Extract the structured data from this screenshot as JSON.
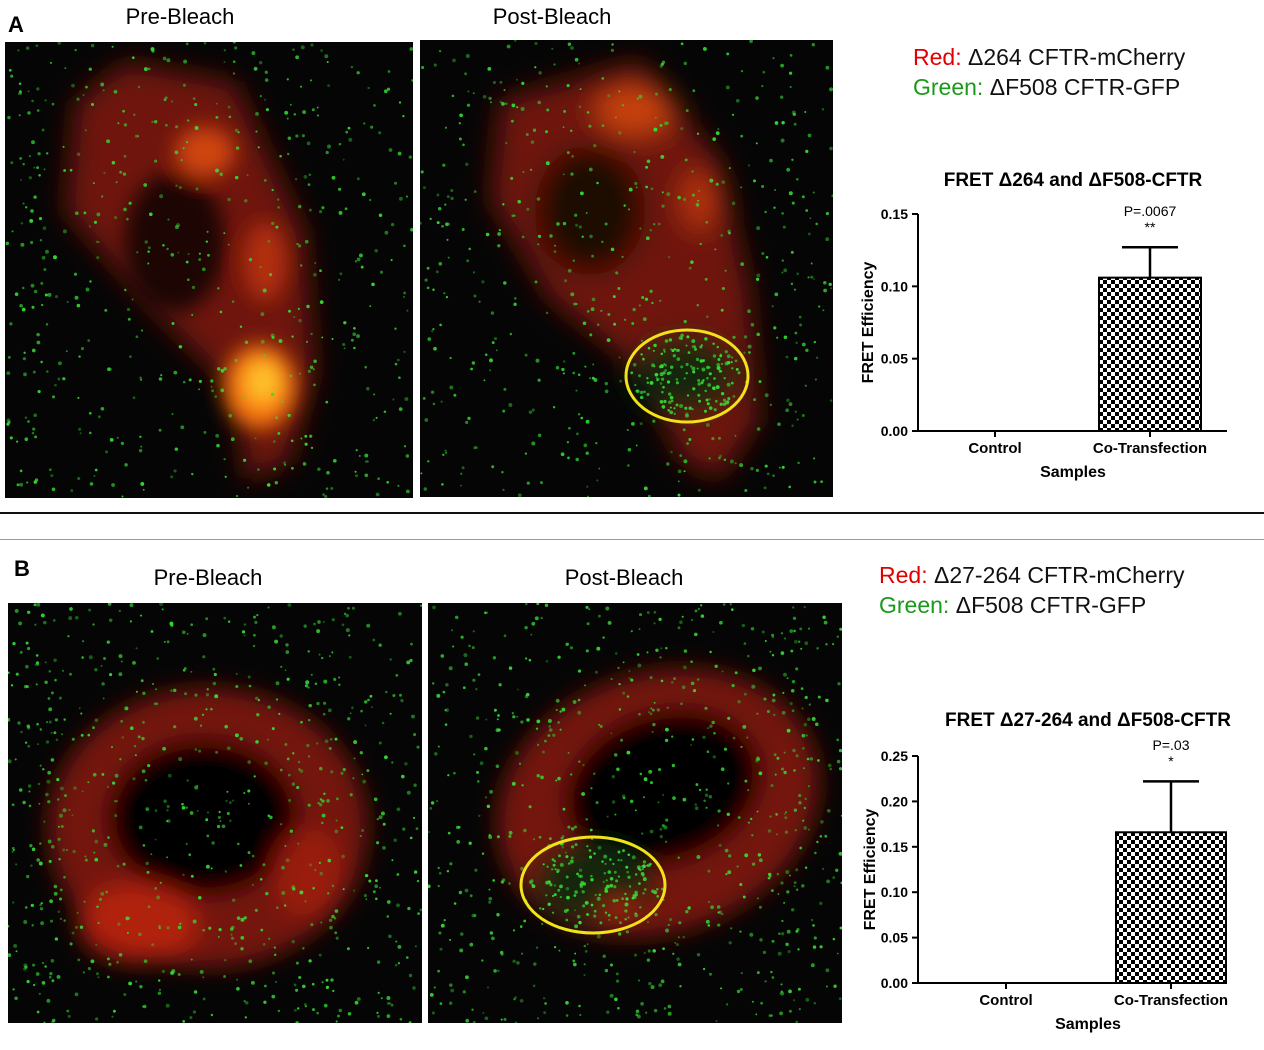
{
  "panel_a": {
    "letter": "A",
    "pre_title": "Pre-Bleach",
    "post_title": "Post-Bleach",
    "legend_red_key": "Red:",
    "legend_red_val": " Δ264 CFTR-mCherry",
    "legend_green_key": "Green:",
    "legend_green_val": " ΔF508 CFTR-GFP"
  },
  "panel_b": {
    "letter": "B",
    "pre_title": "Pre-Bleach",
    "post_title": "Post-Bleach",
    "legend_red_key": "Red:",
    "legend_red_val": " Δ27-264 CFTR-mCherry",
    "legend_green_key": "Green:",
    "legend_green_val": " ΔF508 CFTR-GFP"
  },
  "colors": {
    "red": "#e00000",
    "green": "#1a9a1a",
    "bleach_circle": "#f2e21a",
    "cell_red": "#c41a08",
    "cell_orange": "#ff8a1a",
    "dot_green": "#35e035"
  },
  "chart_data": [
    {
      "type": "bar",
      "title": "FRET Δ264 and ΔF508-CFTR",
      "xlabel": "Samples",
      "ylabel": "FRET Efficiency",
      "categories": [
        "Control",
        "Co-Transfection"
      ],
      "values": [
        0.0,
        0.106
      ],
      "error_upper": [
        0.0,
        0.021
      ],
      "ylim": [
        0.0,
        0.15
      ],
      "yticks": [
        "0.00",
        "0.05",
        "0.10",
        "0.15"
      ],
      "annotation_p": "P=.0067",
      "annotation_stars": "**",
      "bar_fill": "checkerboard",
      "grid": false
    },
    {
      "type": "bar",
      "title": "FRET Δ27-264 and ΔF508-CFTR",
      "xlabel": "Samples",
      "ylabel": "FRET Efficiency",
      "categories": [
        "Control",
        "Co-Transfection"
      ],
      "values": [
        0.0,
        0.166
      ],
      "error_upper": [
        0.0,
        0.056
      ],
      "ylim": [
        0.0,
        0.25
      ],
      "yticks": [
        "0.00",
        "0.05",
        "0.10",
        "0.15",
        "0.20",
        "0.25"
      ],
      "annotation_p": "P=.03",
      "annotation_stars": "*",
      "bar_fill": "checkerboard",
      "grid": false
    }
  ]
}
